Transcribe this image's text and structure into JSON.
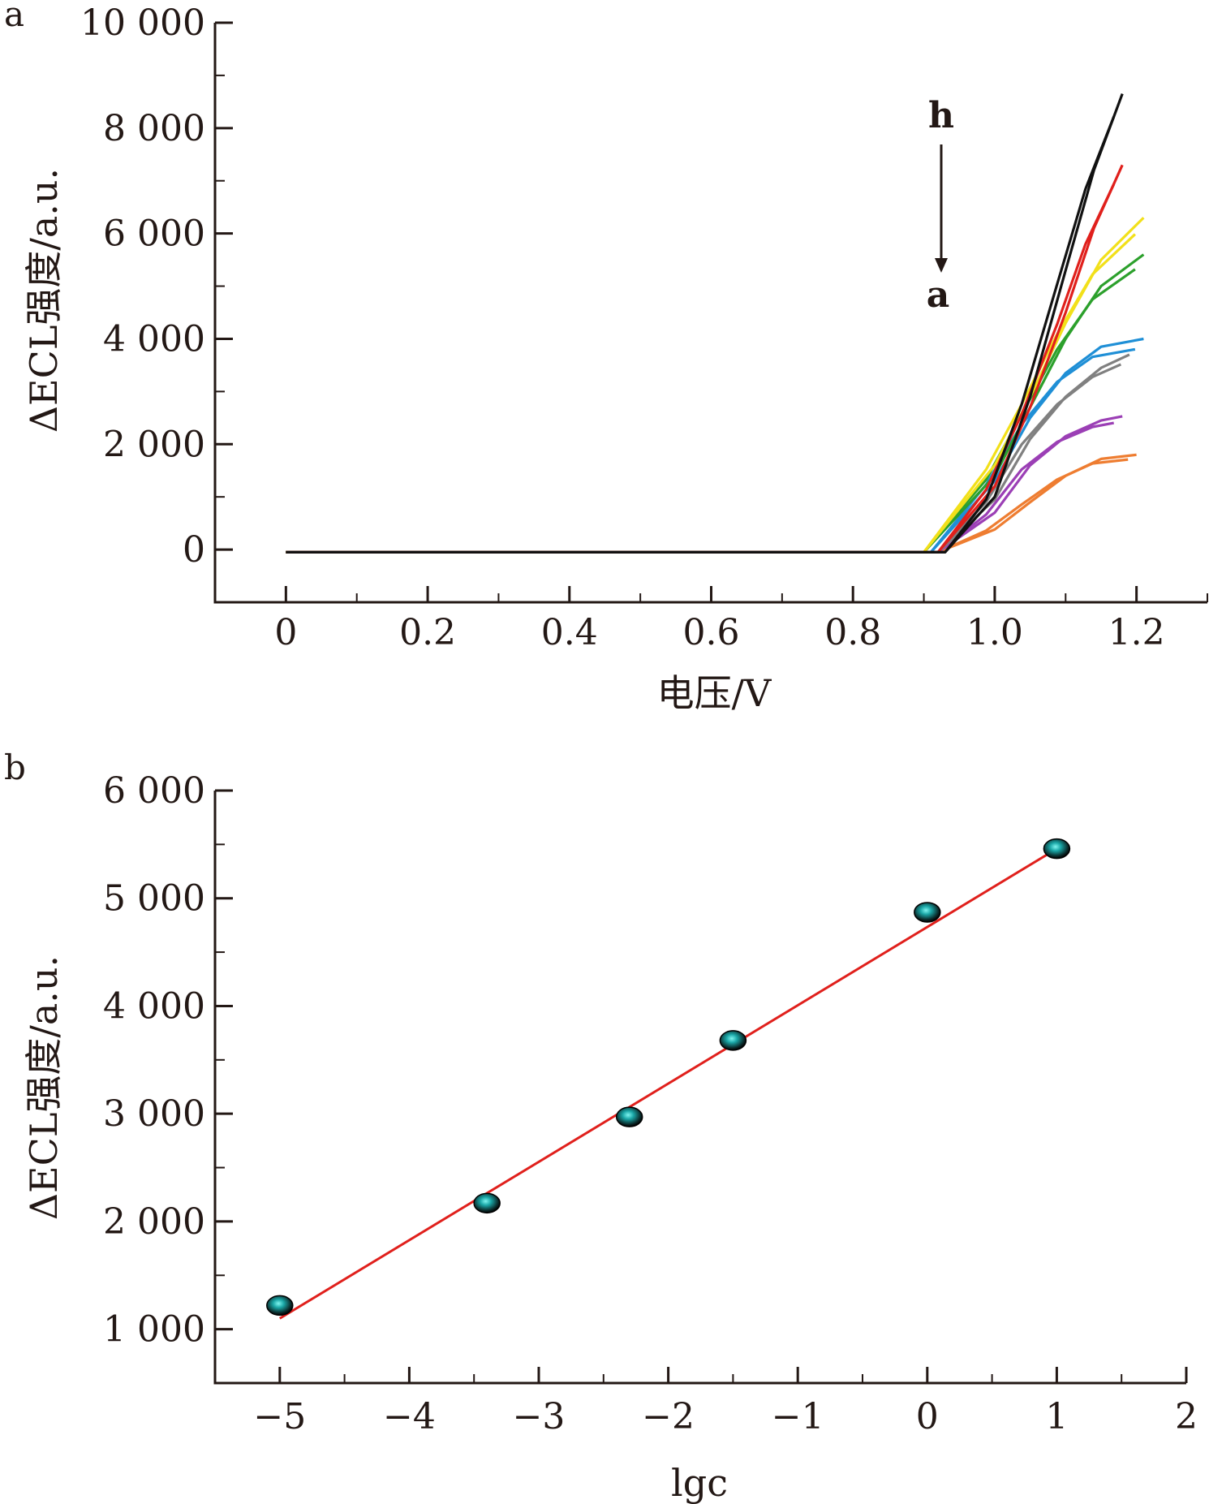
{
  "chart_data": [
    {
      "panel": "a",
      "type": "line",
      "xlabel": "电压/V",
      "ylabel": "ΔECL强度/a.u.",
      "xlim": [
        -0.1,
        1.3
      ],
      "ylim": [
        -1000,
        10000
      ],
      "x_ticks": [
        0,
        0.2,
        0.4,
        0.6,
        0.8,
        1.0,
        1.2
      ],
      "x_tick_labels": [
        "0",
        "0.2",
        "0.4",
        "0.6",
        "0.8",
        "1.0",
        "1.2"
      ],
      "y_ticks": [
        0,
        2000,
        4000,
        6000,
        8000,
        10000
      ],
      "y_tick_labels": [
        "0",
        "2 000",
        "4 000",
        "6 000",
        "8 000",
        "10 000"
      ],
      "annotations": {
        "top": "h",
        "bottom": "a"
      },
      "series": [
        {
          "color": "#ee7d31",
          "x": [
            0.0,
            0.92,
            1.0,
            1.05,
            1.1,
            1.15,
            1.2
          ],
          "y": [
            -50,
            -50,
            380,
            900,
            1400,
            1720,
            1800
          ]
        },
        {
          "color": "#9b3fb5",
          "x": [
            0.0,
            0.92,
            1.0,
            1.05,
            1.1,
            1.15,
            1.18
          ],
          "y": [
            -50,
            -50,
            700,
            1600,
            2150,
            2450,
            2530
          ]
        },
        {
          "color": "#808080",
          "x": [
            0.0,
            0.92,
            1.0,
            1.05,
            1.1,
            1.15,
            1.19
          ],
          "y": [
            -50,
            -50,
            950,
            2100,
            2900,
            3450,
            3700
          ]
        },
        {
          "color": "#1f8fd6",
          "x": [
            0.0,
            0.91,
            1.0,
            1.05,
            1.1,
            1.15,
            1.21
          ],
          "y": [
            -50,
            -50,
            1300,
            2500,
            3350,
            3850,
            4000
          ]
        },
        {
          "color": "#2ca02c",
          "x": [
            0.0,
            0.9,
            1.0,
            1.05,
            1.1,
            1.15,
            1.21
          ],
          "y": [
            -50,
            -50,
            1400,
            2700,
            4000,
            5000,
            5600
          ]
        },
        {
          "color": "#f2e01a",
          "x": [
            0.0,
            0.9,
            1.0,
            1.05,
            1.1,
            1.15,
            1.21
          ],
          "y": [
            -50,
            -50,
            1600,
            2900,
            4300,
            5500,
            6300
          ]
        },
        {
          "color": "#e0201c",
          "x": [
            0.0,
            0.92,
            1.0,
            1.05,
            1.1,
            1.14,
            1.18
          ],
          "y": [
            -50,
            -50,
            1200,
            2700,
            4500,
            6100,
            7300
          ]
        },
        {
          "color": "#111111",
          "x": [
            0.0,
            0.93,
            1.0,
            1.05,
            1.1,
            1.14,
            1.18
          ],
          "y": [
            -50,
            -50,
            1000,
            2900,
            5300,
            7200,
            8650
          ]
        }
      ]
    },
    {
      "panel": "b",
      "type": "scatter",
      "xlabel": "lgc",
      "ylabel": "ΔECL强度/a.u.",
      "xlim": [
        -5.5,
        2
      ],
      "ylim": [
        500,
        6000
      ],
      "x_ticks": [
        -5,
        -4,
        -3,
        -2,
        -1,
        0,
        1,
        2
      ],
      "x_tick_labels": [
        "−5",
        "−4",
        "−3",
        "−2",
        "−1",
        "0",
        "1",
        "2"
      ],
      "y_ticks": [
        1000,
        2000,
        3000,
        4000,
        5000,
        6000
      ],
      "y_tick_labels": [
        "1 000",
        "2 000",
        "3 000",
        "4 000",
        "5 000",
        "6 000"
      ],
      "points": [
        {
          "x": -5.0,
          "y": 1220
        },
        {
          "x": -3.4,
          "y": 2170
        },
        {
          "x": -2.3,
          "y": 2970
        },
        {
          "x": -1.5,
          "y": 3680
        },
        {
          "x": 0.0,
          "y": 4870
        },
        {
          "x": 1.0,
          "y": 5460
        }
      ],
      "fit_line": {
        "color": "#e0201c",
        "x": [
          -5.0,
          1.0
        ],
        "y": [
          1100,
          5460
        ]
      },
      "marker_color": "#1aa6a6"
    }
  ],
  "panel_labels": {
    "a": "a",
    "b": "b"
  }
}
